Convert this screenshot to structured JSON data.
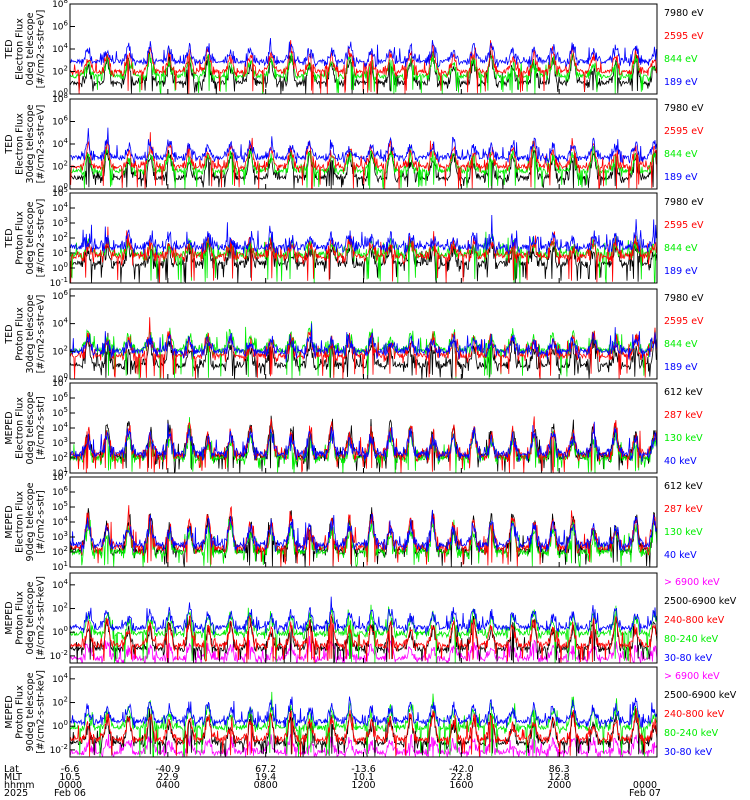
{
  "colors": {
    "black": "#000000",
    "red": "#ff0000",
    "green": "#00ee00",
    "blue": "#0000ff",
    "magenta": "#ff00ff"
  },
  "chart_data": {
    "type": "line",
    "panels": [
      {
        "ylabel": [
          "TED",
          "Electron Flux",
          "0deg telescope",
          "[#/cm2-s-str-eV]"
        ],
        "ytick_labels": [
          "10^0",
          "10^2",
          "10^4",
          "10^6",
          "10^8"
        ],
        "ylim_exp": [
          0,
          8
        ],
        "baselines": {
          "blue": 2.9,
          "red": 2.0,
          "green": 1.6,
          "black": 1.0
        },
        "spike_scale": 2.2,
        "legend": [
          {
            "text": "7980 eV",
            "color": "black"
          },
          {
            "text": "2595 eV",
            "color": "red"
          },
          {
            "text": "844 eV",
            "color": "green"
          },
          {
            "text": "189 eV",
            "color": "blue"
          }
        ]
      },
      {
        "ylabel": [
          "TED",
          "Electron Flux",
          "30deg telescope",
          "[#/cm2-s-str-eV]"
        ],
        "ytick_labels": [
          "10^0",
          "10^2",
          "10^4",
          "10^6",
          "10^8"
        ],
        "ylim_exp": [
          0,
          8
        ],
        "baselines": {
          "blue": 2.8,
          "red": 2.0,
          "green": 1.6,
          "black": 1.0
        },
        "spike_scale": 2.3,
        "legend": [
          {
            "text": "7980 eV",
            "color": "black"
          },
          {
            "text": "2595 eV",
            "color": "red"
          },
          {
            "text": "844 eV",
            "color": "green"
          },
          {
            "text": "189 eV",
            "color": "blue"
          }
        ]
      },
      {
        "ylabel": [
          "TED",
          "Proton Flux",
          "0deg telescope",
          "[#/cm2-s-str-eV]"
        ],
        "ytick_labels": [
          "10^-1",
          "10^0",
          "10^1",
          "10^2",
          "10^3",
          "10^4",
          "10^5"
        ],
        "ylim_exp": [
          -1,
          5
        ],
        "baselines": {
          "blue": 1.4,
          "red": 0.8,
          "green": 0.9,
          "black": 0.3
        },
        "spike_scale": 1.2,
        "legend": [
          {
            "text": "7980 eV",
            "color": "black"
          },
          {
            "text": "2595 eV",
            "color": "red"
          },
          {
            "text": "844 eV",
            "color": "green"
          },
          {
            "text": "189 eV",
            "color": "blue"
          }
        ]
      },
      {
        "ylabel": [
          "TED",
          "Proton Flux",
          "30deg telescope",
          "[#/cm2-s-str-eV]"
        ],
        "ytick_labels": [
          "10^0",
          "10^2",
          "10^4",
          "10^6"
        ],
        "ylim_exp": [
          0,
          6.5
        ],
        "baselines": {
          "blue": 2.0,
          "red": 1.7,
          "green": 2.1,
          "black": 1.0
        },
        "spike_scale": 1.6,
        "legend": [
          {
            "text": "7980 eV",
            "color": "black"
          },
          {
            "text": "2595 eV",
            "color": "red"
          },
          {
            "text": "844 eV",
            "color": "green"
          },
          {
            "text": "189 eV",
            "color": "blue"
          }
        ]
      },
      {
        "ylabel": [
          "MEPED",
          "Electron Flux",
          "0deg telescope",
          "[#/cm2-s-str]"
        ],
        "ytick_labels": [
          "10^1",
          "10^2",
          "10^3",
          "10^4",
          "10^5",
          "10^6",
          "10^7"
        ],
        "ylim_exp": [
          1,
          7
        ],
        "baselines": {
          "blue": 2.3,
          "red": 2.2,
          "green": 2.0,
          "black": 2.1
        },
        "spike_scale": 2.2,
        "legend": [
          {
            "text": "612 keV",
            "color": "black"
          },
          {
            "text": "287 keV",
            "color": "red"
          },
          {
            "text": "130 keV",
            "color": "green"
          },
          {
            "text": "40 keV",
            "color": "blue"
          }
        ]
      },
      {
        "ylabel": [
          "MEPED",
          "Electron Flux",
          "90deg telescope",
          "[#/cm2-s-str]"
        ],
        "ytick_labels": [
          "10^1",
          "10^2",
          "10^3",
          "10^4",
          "10^5",
          "10^6",
          "10^7"
        ],
        "ylim_exp": [
          1,
          7
        ],
        "baselines": {
          "blue": 2.5,
          "red": 2.3,
          "green": 2.0,
          "black": 2.1
        },
        "spike_scale": 2.4,
        "legend": [
          {
            "text": "612 keV",
            "color": "black"
          },
          {
            "text": "287 keV",
            "color": "red"
          },
          {
            "text": "130 keV",
            "color": "green"
          },
          {
            "text": "40 keV",
            "color": "blue"
          }
        ]
      },
      {
        "ylabel": [
          "MEPED",
          "Proton Flux",
          "0deg telescope",
          "[#/cm2-s-str-keV]"
        ],
        "ytick_labels": [
          "10^-2",
          "10^0",
          "10^2",
          "10^4"
        ],
        "ylim_exp": [
          -2.6,
          5
        ],
        "baselines": {
          "blue": 0.4,
          "red": -1.1,
          "green": -0.1,
          "black": -1.4,
          "magenta": -2.2
        },
        "spike_scale": 2.4,
        "legend": [
          {
            "text": "> 6900 keV",
            "color": "magenta"
          },
          {
            "text": "2500-6900 keV",
            "color": "black"
          },
          {
            "text": "240-800 keV",
            "color": "red"
          },
          {
            "text": "80-240 keV",
            "color": "green"
          },
          {
            "text": "30-80 keV",
            "color": "blue"
          }
        ]
      },
      {
        "ylabel": [
          "MEPED",
          "Proton Flux",
          "90deg telescope",
          "[#/cm2-s-str-keV]"
        ],
        "ytick_labels": [
          "10^-2",
          "10^0",
          "10^2",
          "10^4"
        ],
        "ylim_exp": [
          -2.6,
          5
        ],
        "baselines": {
          "blue": 0.4,
          "red": -1.1,
          "green": -0.1,
          "black": -1.4,
          "magenta": -2.2
        },
        "spike_scale": 2.4,
        "legend": [
          {
            "text": "> 6900 keV",
            "color": "magenta"
          },
          {
            "text": "2500-6900 keV",
            "color": "black"
          },
          {
            "text": "240-800 keV",
            "color": "red"
          },
          {
            "text": "80-240 keV",
            "color": "green"
          },
          {
            "text": "30-80 keV",
            "color": "blue"
          }
        ]
      }
    ],
    "x_axis": {
      "row_labels": [
        "Lat",
        "MLT",
        "hhmm",
        "2025"
      ],
      "ticks": [
        {
          "lat": "-6.6",
          "mlt": "10.5",
          "hhmm": "0000",
          "date": "Feb 06"
        },
        {
          "lat": "-40.9",
          "mlt": "22.9",
          "hhmm": "0400",
          "date": ""
        },
        {
          "lat": "67.2",
          "mlt": "19.4",
          "hhmm": "0800",
          "date": ""
        },
        {
          "lat": "-13.6",
          "mlt": "10.1",
          "hhmm": "1200",
          "date": ""
        },
        {
          "lat": "-42.0",
          "mlt": "22.8",
          "hhmm": "1600",
          "date": ""
        },
        {
          "lat": "86.3",
          "mlt": "12.8",
          "hhmm": "2000",
          "date": ""
        },
        {
          "lat": "",
          "mlt": "",
          "hhmm": "0000",
          "date": "Feb 07"
        }
      ]
    }
  }
}
